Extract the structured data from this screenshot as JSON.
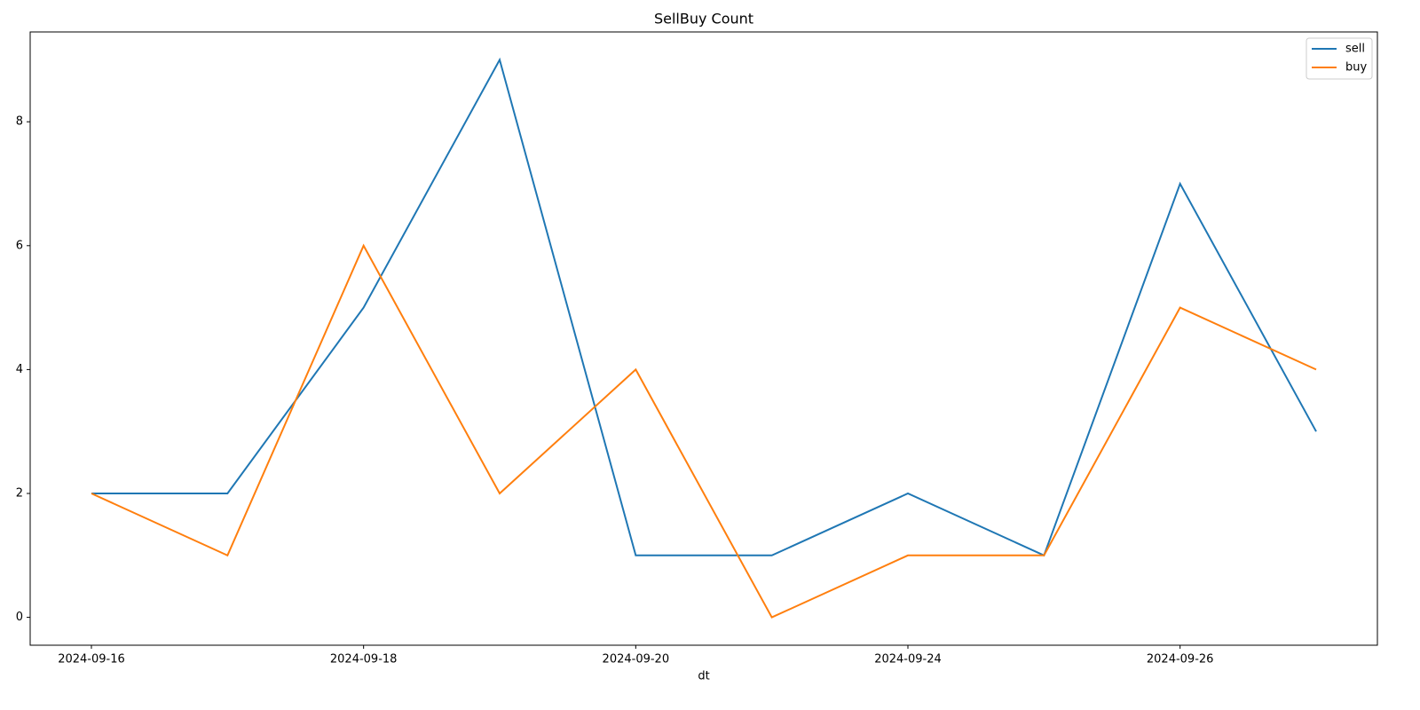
{
  "chart_data": {
    "type": "line",
    "title": "SellBuy Count",
    "x_label": "dt",
    "categories": [
      "2024-09-16",
      null,
      "2024-09-18",
      null,
      "2024-09-20",
      null,
      "2024-09-24",
      null,
      "2024-09-26",
      null
    ],
    "series": [
      {
        "name": "sell",
        "color": "#1f77b4",
        "values": [
          2,
          2,
          5,
          9,
          1,
          1,
          2,
          1,
          7,
          3
        ]
      },
      {
        "name": "buy",
        "color": "#ff7f0e",
        "values": [
          2,
          1,
          6,
          2,
          4,
          0,
          1,
          1,
          5,
          4
        ]
      }
    ],
    "ylim": [
      -0.45,
      9.45
    ],
    "yticks": [
      0,
      2,
      4,
      6,
      8
    ],
    "legend": "upper right",
    "grid": false
  }
}
